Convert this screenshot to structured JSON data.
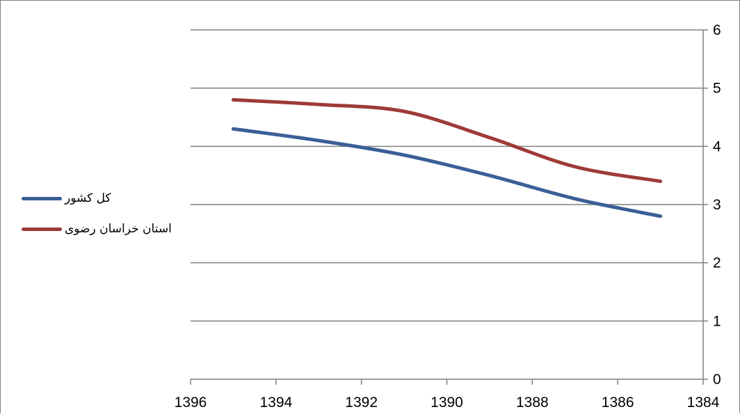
{
  "chart_data": {
    "type": "line",
    "title": "",
    "xlabel": "",
    "ylabel": "",
    "x_reversed": true,
    "xlim": [
      1396,
      1384
    ],
    "ylim": [
      0,
      6
    ],
    "xticks": [
      1396,
      1394,
      1392,
      1390,
      1388,
      1386,
      1384
    ],
    "yticks": [
      0,
      1,
      2,
      3,
      4,
      5,
      6
    ],
    "y_axis_position": "right",
    "grid": "horizontal",
    "legend_position": "left",
    "series": [
      {
        "name": "کل کشور",
        "color": "#3a5f96",
        "x": [
          1395,
          1393,
          1391,
          1389,
          1387,
          1385
        ],
        "y": [
          4.3,
          4.1,
          3.85,
          3.5,
          3.1,
          2.8
        ]
      },
      {
        "name": "استان خراسان رضوی",
        "color": "#9e3a38",
        "x": [
          1395,
          1393,
          1391,
          1389,
          1387,
          1385
        ],
        "y": [
          4.8,
          4.72,
          4.6,
          4.15,
          3.65,
          3.4
        ]
      }
    ]
  }
}
